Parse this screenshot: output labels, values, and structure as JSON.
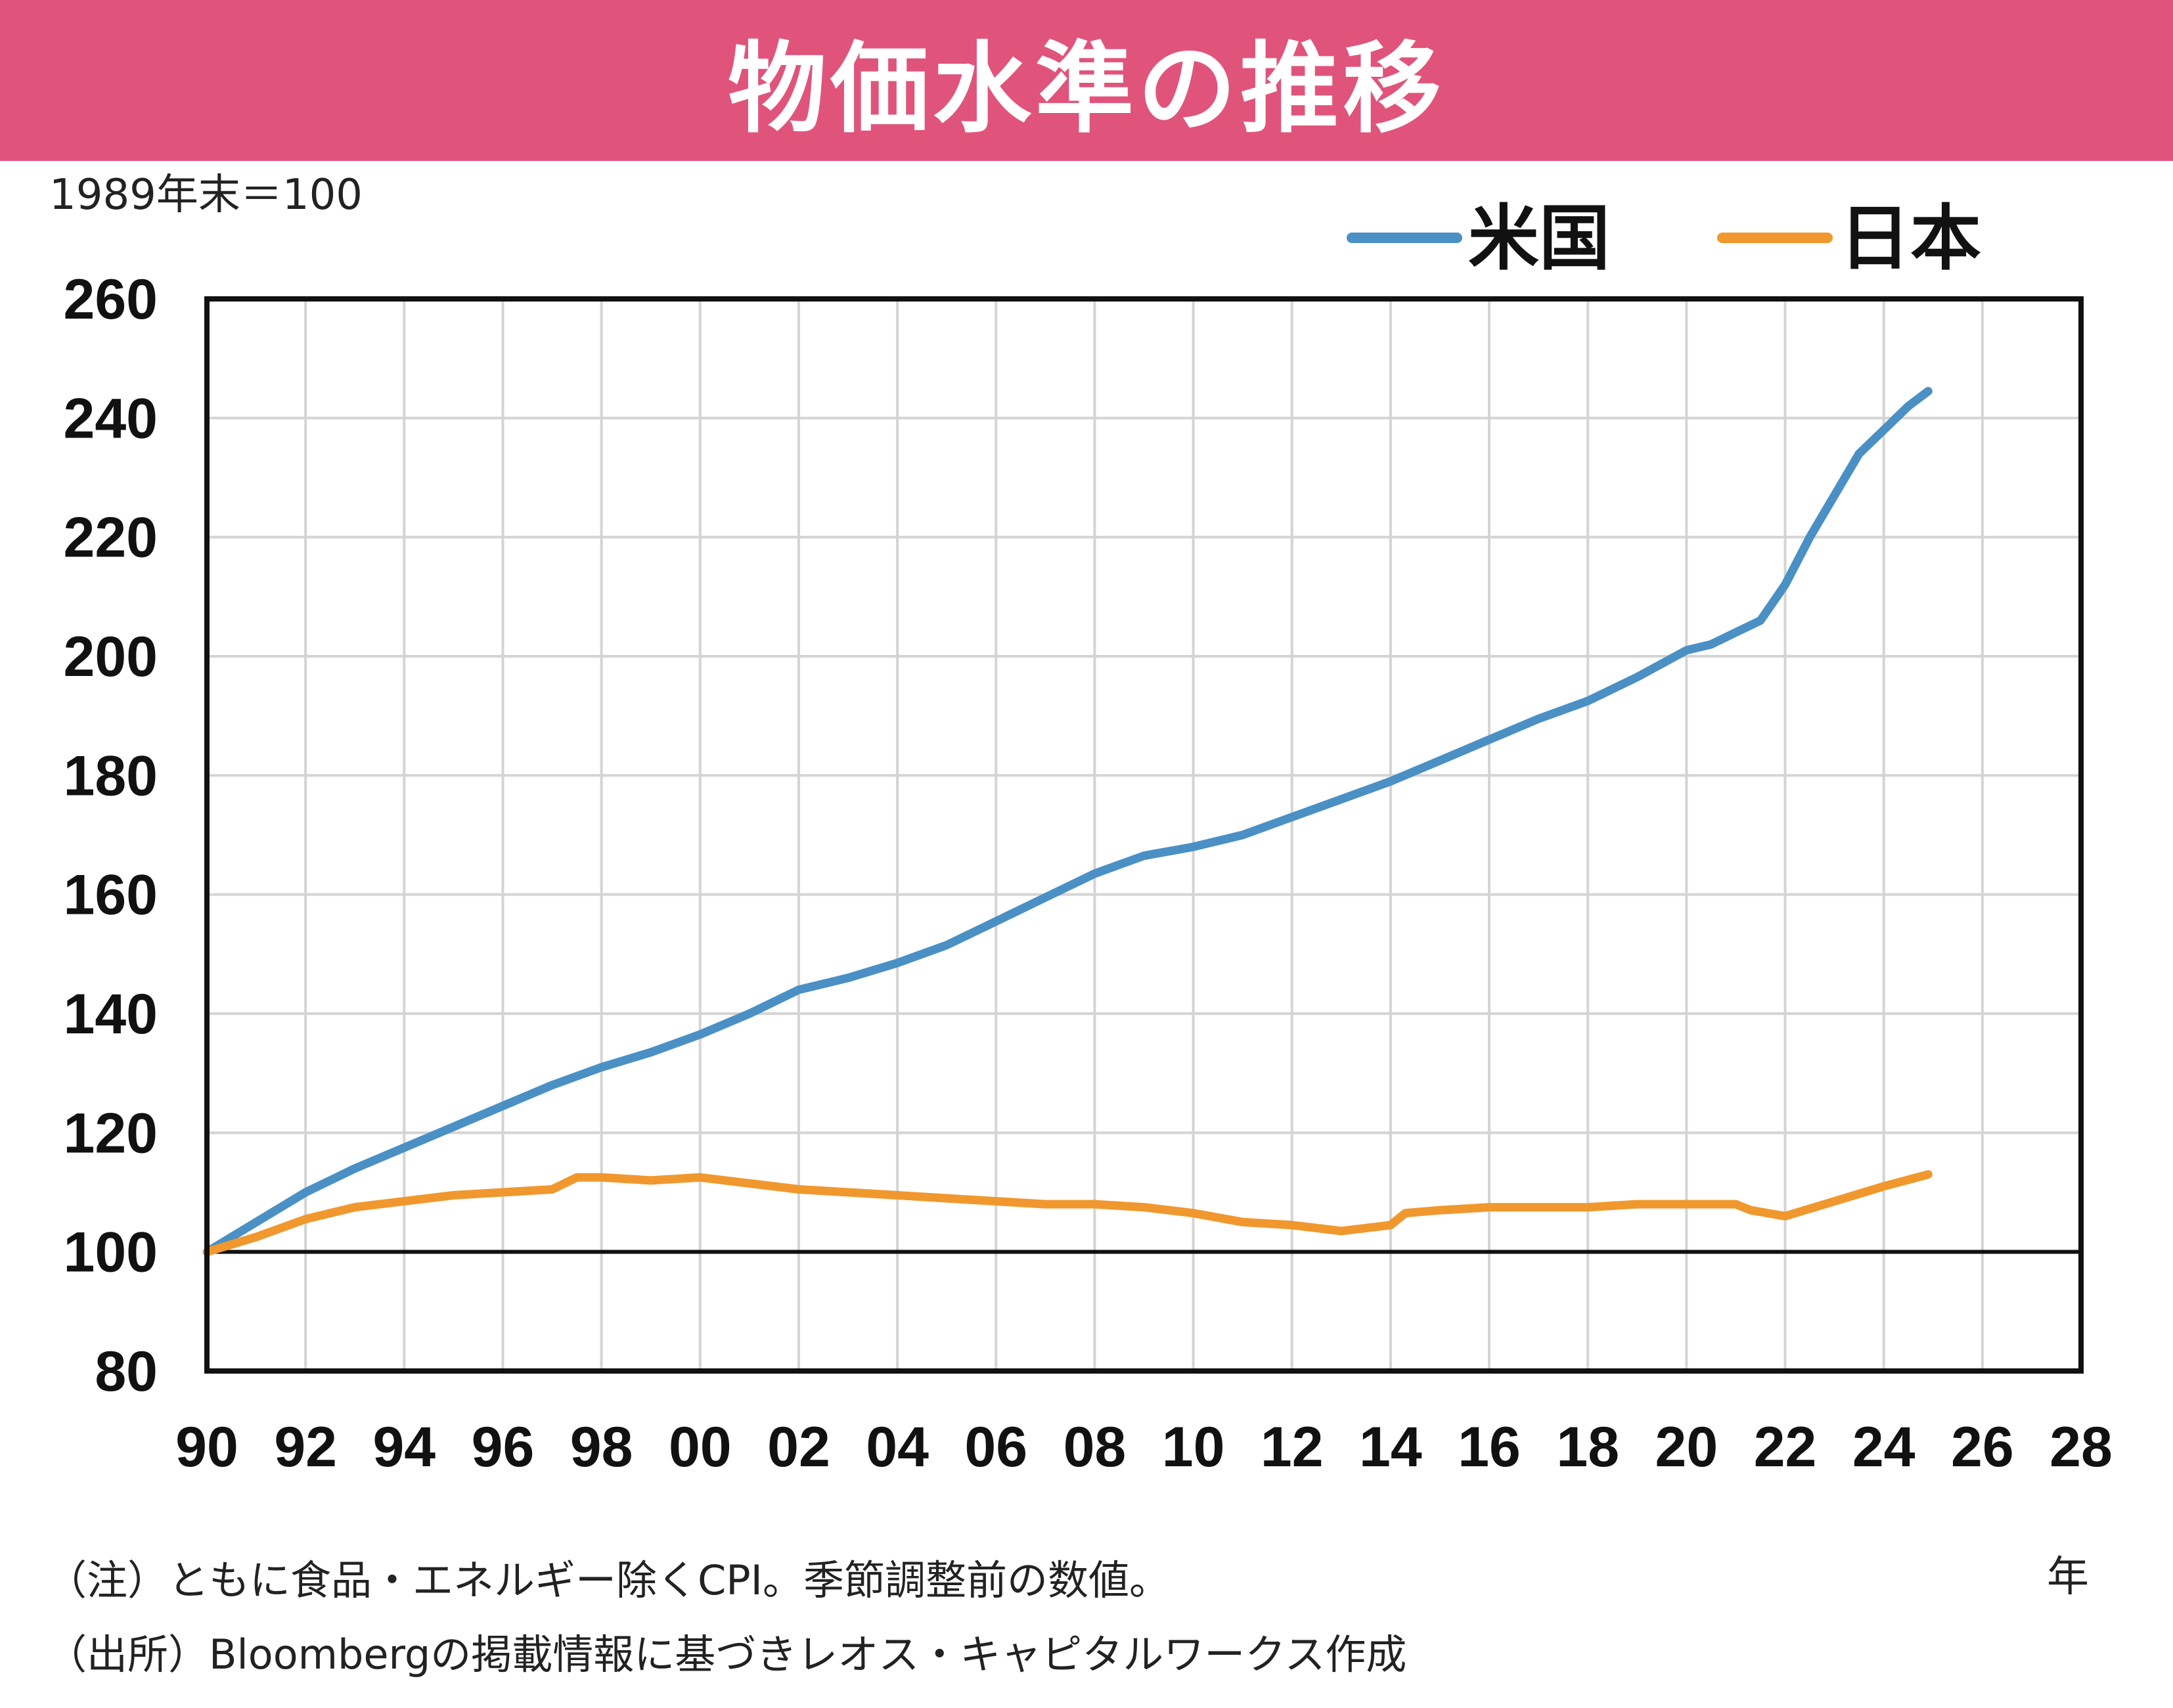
{
  "title": "物価水準の推移",
  "notes": {
    "note1": "（注）ともに食品・エネルギー除くCPI。季節調整前の数値。",
    "note2": "（出所）Bloombergの掲載情報に基づきレオス・キャピタルワークス作成"
  },
  "colors": {
    "us": "#4a90c4",
    "japan": "#f0982e",
    "title_bg": "#e0547b"
  },
  "chart_data": {
    "type": "line",
    "title": "物価水準の推移",
    "ylabel": "1989年末＝100",
    "xlabel": "年",
    "ylim": [
      80,
      260
    ],
    "yticks": [
      "80",
      "100",
      "120",
      "140",
      "160",
      "180",
      "200",
      "220",
      "240",
      "260"
    ],
    "xlim": [
      1990,
      2028
    ],
    "xticks": [
      "90",
      "92",
      "94",
      "96",
      "98",
      "00",
      "02",
      "04",
      "06",
      "08",
      "10",
      "12",
      "14",
      "16",
      "18",
      "20",
      "22",
      "24",
      "26",
      "28"
    ],
    "baseline": 100,
    "grid": true,
    "legend": "top-right",
    "series": [
      {
        "name": "米国",
        "color": "#4a90c4",
        "x": [
          1990,
          1991,
          1992,
          1993,
          1994,
          1995,
          1996,
          1997,
          1998,
          1999,
          2000,
          2001,
          2002,
          2003,
          2004,
          2005,
          2006,
          2007,
          2008,
          2009,
          2010,
          2011,
          2012,
          2013,
          2014,
          2015,
          2016,
          2017,
          2018,
          2019,
          2020,
          2020.5,
          2021,
          2021.5,
          2022,
          2022.5,
          2023,
          2023.5,
          2024,
          2024.5,
          2024.9
        ],
        "values": [
          100,
          105,
          110,
          114,
          117.5,
          121,
          124.5,
          128,
          131,
          133.5,
          136.5,
          140,
          144,
          146,
          148.5,
          151.5,
          155.5,
          159.5,
          163.5,
          166.5,
          168,
          170,
          173,
          176,
          179,
          182.5,
          186,
          189.5,
          192.5,
          196.5,
          201,
          202,
          204,
          206,
          212,
          220,
          227,
          234,
          238,
          242,
          244.5
        ]
      },
      {
        "name": "日本",
        "color": "#f0982e",
        "x": [
          1990,
          1991,
          1992,
          1993,
          1994,
          1995,
          1996,
          1997,
          1997.5,
          1998,
          1999,
          2000,
          2001,
          2002,
          2003,
          2004,
          2005,
          2006,
          2007,
          2008,
          2009,
          2010,
          2011,
          2012,
          2013,
          2014,
          2014.3,
          2015,
          2016,
          2017,
          2018,
          2019,
          2020,
          2021,
          2021.3,
          2022,
          2023,
          2024,
          2024.9
        ],
        "values": [
          100,
          102.5,
          105.5,
          107.5,
          108.5,
          109.5,
          110,
          110.5,
          112.5,
          112.5,
          112,
          112.5,
          111.5,
          110.5,
          110,
          109.5,
          109,
          108.5,
          108,
          108,
          107.5,
          106.5,
          105,
          104.5,
          103.5,
          104.5,
          106.5,
          107,
          107.5,
          107.5,
          107.5,
          108,
          108,
          108,
          107,
          106,
          108.5,
          111,
          113
        ]
      }
    ]
  }
}
